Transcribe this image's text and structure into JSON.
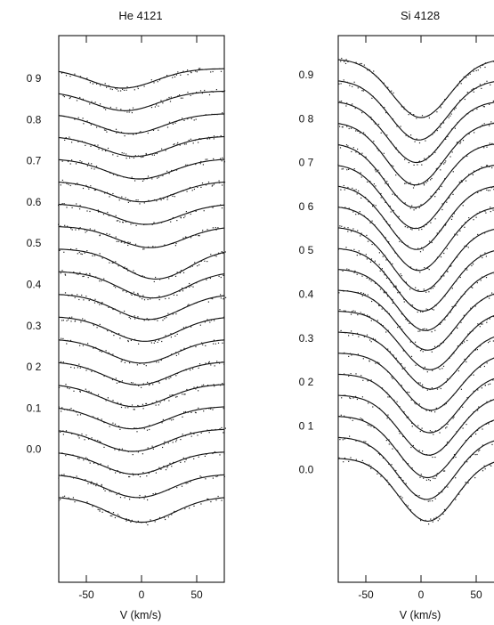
{
  "chart_data": [
    {
      "type": "line",
      "title": "He 4121",
      "xlabel": "V (km/s)",
      "x_ticks": [
        "-50",
        "0",
        "50"
      ],
      "xlim": [
        -75,
        75
      ],
      "y_offset_labels": [
        "0 9",
        "0.8",
        "0.7",
        "0.6",
        "0.5",
        "0.4",
        "0.3",
        "0 2",
        "0.1",
        "0.0"
      ],
      "series": [
        {
          "phase": 0.95,
          "line_center_kms": -17,
          "depth": 0.55
        },
        {
          "phase": 0.9,
          "line_center_kms": -15,
          "depth": 0.55
        },
        {
          "phase": 0.85,
          "line_center_kms": -10,
          "depth": 0.56
        },
        {
          "phase": 0.8,
          "line_center_kms": -6,
          "depth": 0.57
        },
        {
          "phase": 0.75,
          "line_center_kms": -2,
          "depth": 0.57
        },
        {
          "phase": 0.7,
          "line_center_kms": 0,
          "depth": 0.58
        },
        {
          "phase": 0.65,
          "line_center_kms": 4,
          "depth": 0.58
        },
        {
          "phase": 0.6,
          "line_center_kms": 8,
          "depth": 0.6
        },
        {
          "phase": 0.55,
          "line_center_kms": 13,
          "depth": 0.85
        },
        {
          "phase": 0.5,
          "line_center_kms": 10,
          "depth": 0.75
        },
        {
          "phase": 0.45,
          "line_center_kms": 6,
          "depth": 0.72
        },
        {
          "phase": 0.4,
          "line_center_kms": 3,
          "depth": 0.7
        },
        {
          "phase": 0.35,
          "line_center_kms": 0,
          "depth": 0.68
        },
        {
          "phase": 0.3,
          "line_center_kms": -3,
          "depth": 0.66
        },
        {
          "phase": 0.25,
          "line_center_kms": -6,
          "depth": 0.64
        },
        {
          "phase": 0.2,
          "line_center_kms": -8,
          "depth": 0.63
        },
        {
          "phase": 0.15,
          "line_center_kms": -8,
          "depth": 0.63
        },
        {
          "phase": 0.1,
          "line_center_kms": -6,
          "depth": 0.64
        },
        {
          "phase": 0.05,
          "line_center_kms": -3,
          "depth": 0.66
        },
        {
          "phase": 0.0,
          "line_center_kms": 0,
          "depth": 0.72
        }
      ]
    },
    {
      "type": "line",
      "title": "Si 4128",
      "xlabel": "V (km/s)",
      "x_ticks": [
        "-50",
        "0",
        "50"
      ],
      "xlim": [
        -75,
        75
      ],
      "y_offset_labels": [
        "0.9",
        "0 8",
        "0 7",
        "0 6",
        "0 5",
        "0.4",
        "0.3",
        "0 2",
        "0 1",
        "0.0"
      ],
      "series": [
        {
          "phase": 0.95,
          "line_center_kms": 0,
          "depth": 0.8
        },
        {
          "phase": 0.9,
          "line_center_kms": -2,
          "depth": 0.82
        },
        {
          "phase": 0.85,
          "line_center_kms": -4,
          "depth": 0.84
        },
        {
          "phase": 0.8,
          "line_center_kms": -5,
          "depth": 0.86
        },
        {
          "phase": 0.75,
          "line_center_kms": -6,
          "depth": 0.88
        },
        {
          "phase": 0.7,
          "line_center_kms": -5,
          "depth": 0.88
        },
        {
          "phase": 0.65,
          "line_center_kms": -4,
          "depth": 0.88
        },
        {
          "phase": 0.6,
          "line_center_kms": -2,
          "depth": 0.88
        },
        {
          "phase": 0.55,
          "line_center_kms": 0,
          "depth": 0.88
        },
        {
          "phase": 0.5,
          "line_center_kms": 2,
          "depth": 0.86
        },
        {
          "phase": 0.45,
          "line_center_kms": 4,
          "depth": 0.84
        },
        {
          "phase": 0.4,
          "line_center_kms": 6,
          "depth": 0.82
        },
        {
          "phase": 0.35,
          "line_center_kms": 8,
          "depth": 0.8
        },
        {
          "phase": 0.3,
          "line_center_kms": 9,
          "depth": 0.78
        },
        {
          "phase": 0.25,
          "line_center_kms": 9,
          "depth": 0.78
        },
        {
          "phase": 0.2,
          "line_center_kms": 8,
          "depth": 0.8
        },
        {
          "phase": 0.15,
          "line_center_kms": 7,
          "depth": 0.82
        },
        {
          "phase": 0.1,
          "line_center_kms": 6,
          "depth": 0.84
        },
        {
          "phase": 0.05,
          "line_center_kms": 5,
          "depth": 0.85
        },
        {
          "phase": 0.0,
          "line_center_kms": 6,
          "depth": 0.86
        }
      ]
    }
  ]
}
